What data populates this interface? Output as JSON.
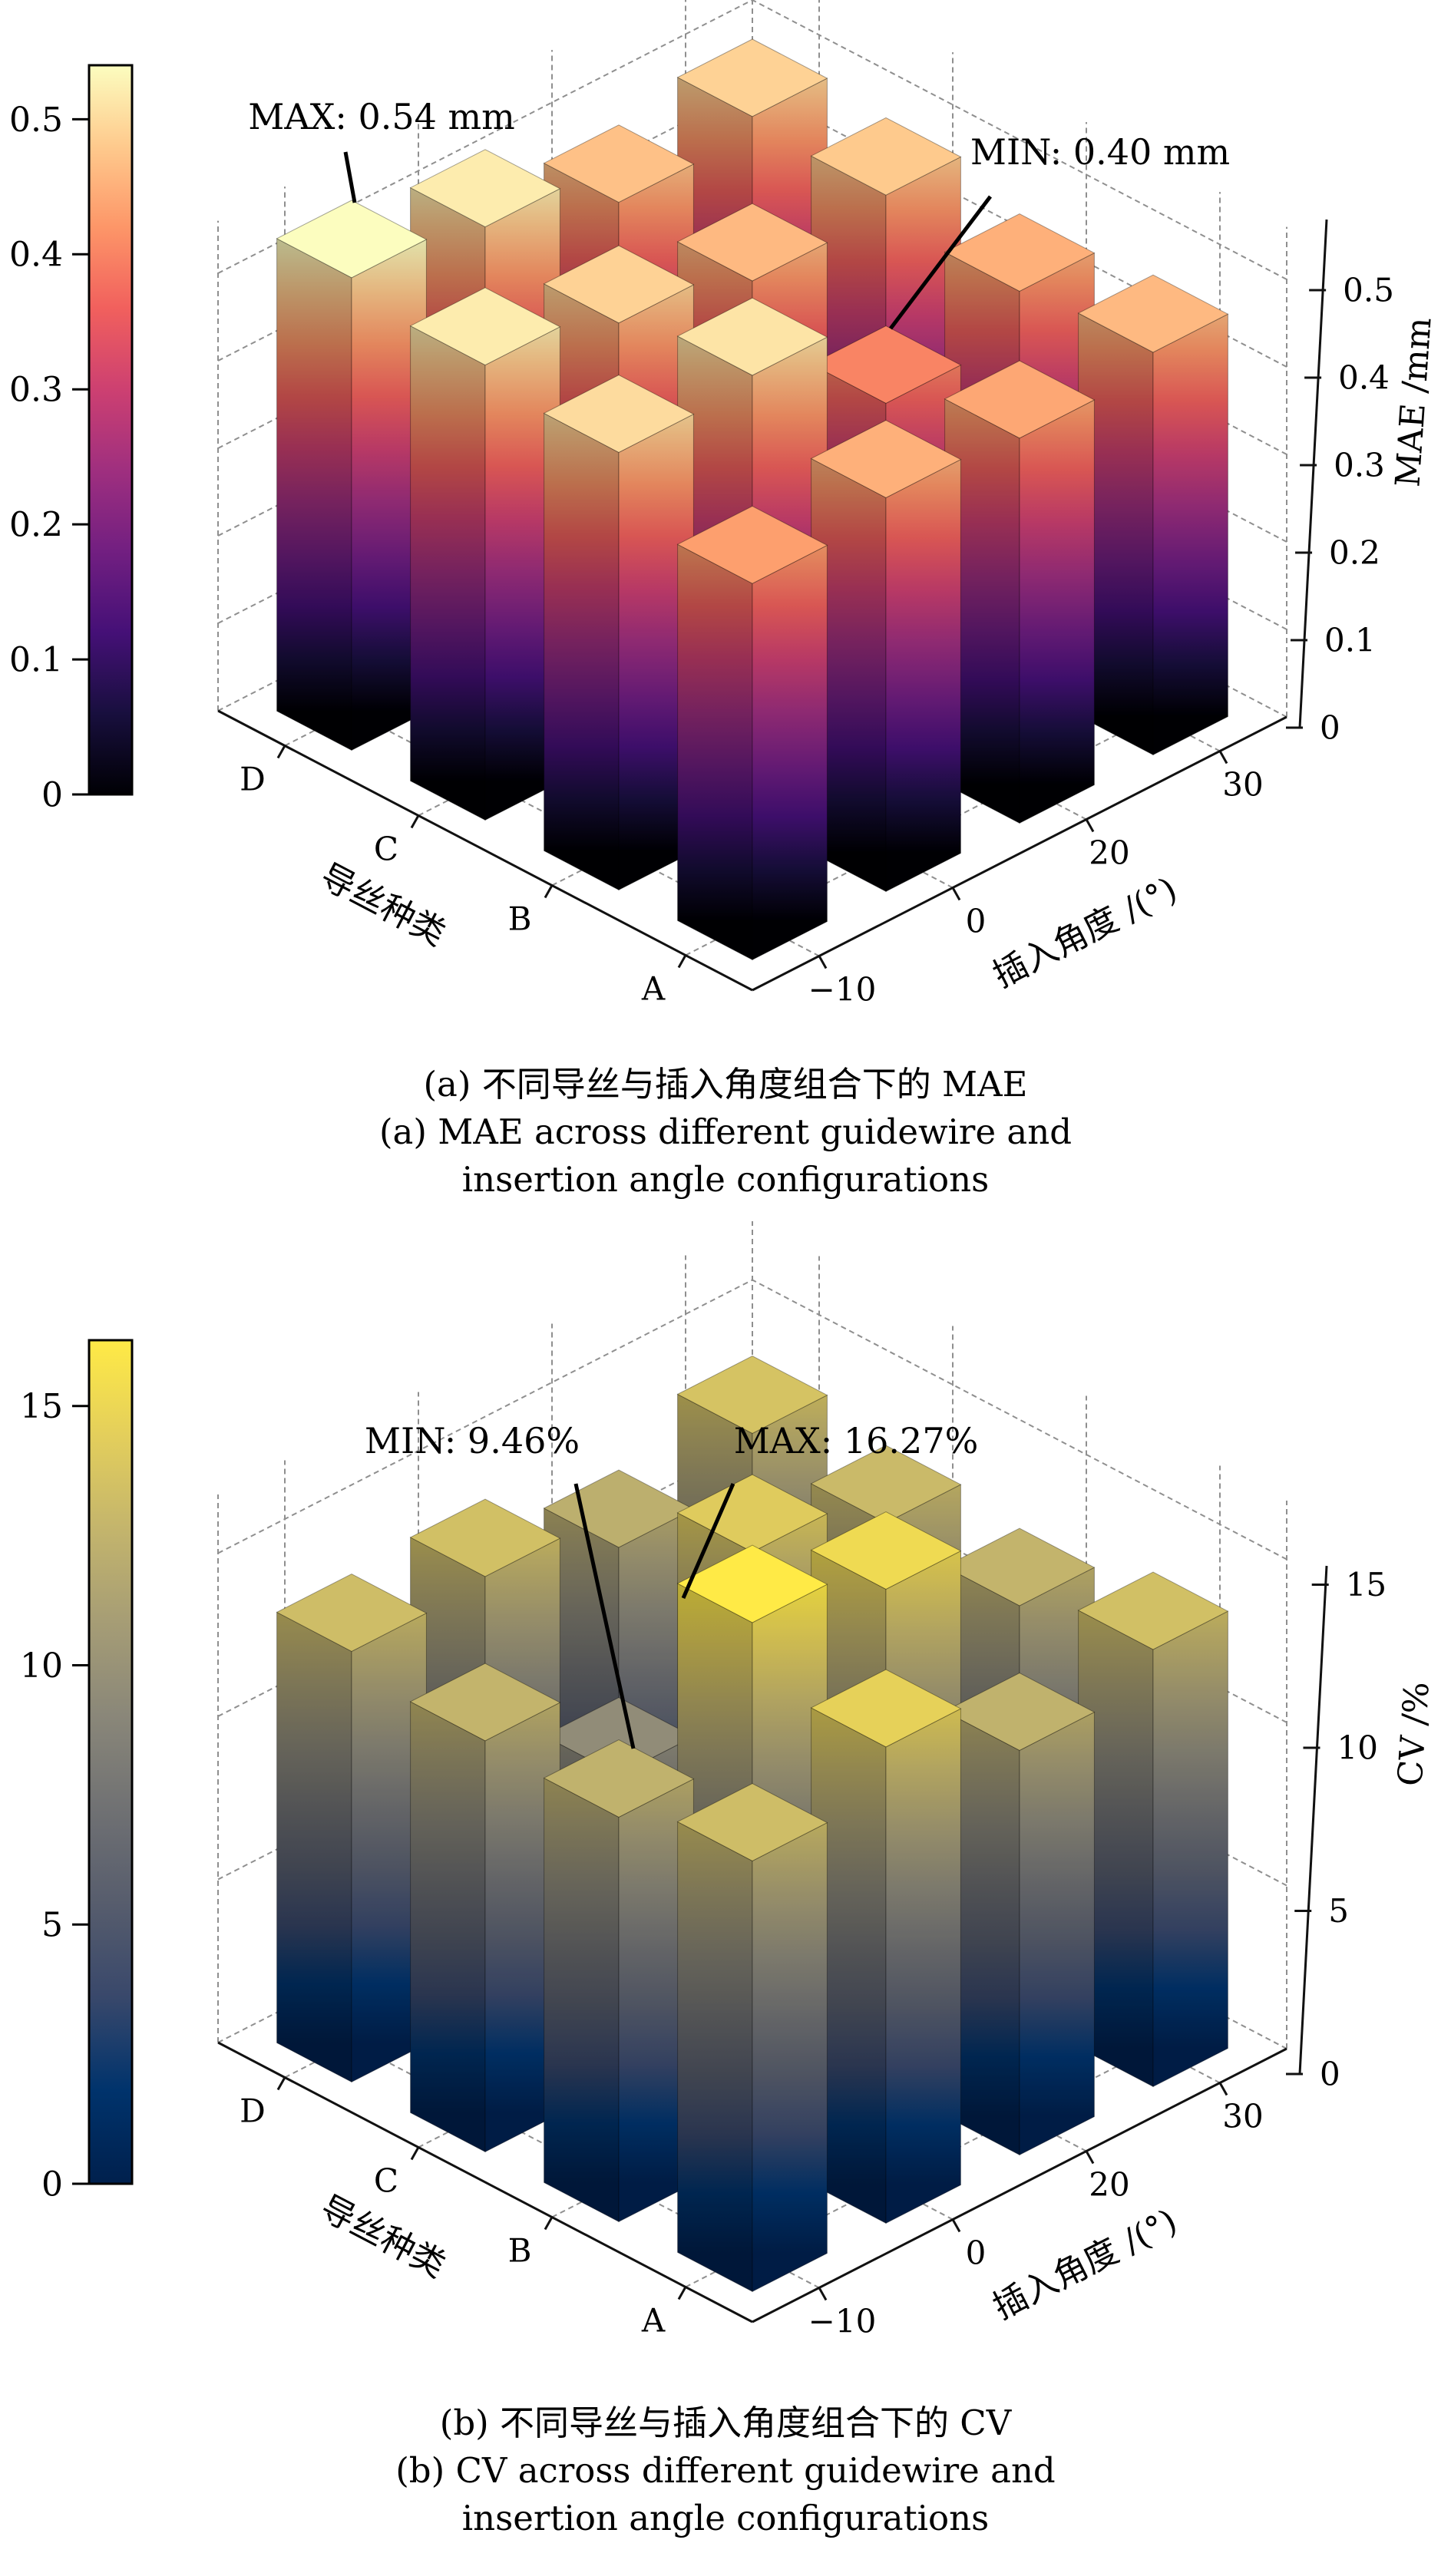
{
  "page": {
    "background": "#ffffff",
    "text_color": "#000000",
    "gridline_color": "#8a8a8a"
  },
  "chart_data": [
    {
      "type": "bar",
      "subtype": "bar3d",
      "panel": "a",
      "caption_lines": [
        "(a) 不同导丝与插入角度组合下的 MAE",
        "(a) MAE across different guidewire and",
        "insertion angle configurations"
      ],
      "xlabel": "插入角度 /(°)",
      "ylabel": "导丝种类",
      "zlabel": "MAE /mm",
      "x_categories": [
        "−10",
        "0",
        "20",
        "30"
      ],
      "y_categories": [
        "A",
        "B",
        "C",
        "D"
      ],
      "z_ticklabels": [
        "0",
        "0.1",
        "0.2",
        "0.3",
        "0.4",
        "0.5"
      ],
      "z_tick_values": [
        0,
        0.1,
        0.2,
        0.3,
        0.4,
        0.5
      ],
      "zlim": [
        0,
        0.56
      ],
      "grid": true,
      "colormap": "magma",
      "colormap_stops": [
        "#000004",
        "#180f3e",
        "#451077",
        "#721f81",
        "#9f2f7f",
        "#cd4071",
        "#f1605d",
        "#fd9668",
        "#feca8d",
        "#fcfdbf"
      ],
      "color_vmax": 0.54,
      "colorbar_ticklabels": [
        "0",
        "0.1",
        "0.2",
        "0.3",
        "0.4",
        "0.5"
      ],
      "colorbar_tick_values": [
        0,
        0.1,
        0.2,
        0.3,
        0.4,
        0.5
      ],
      "series": [
        {
          "name": "A",
          "values": [
            0.43,
            0.45,
            0.44,
            0.46
          ]
        },
        {
          "name": "B",
          "values": [
            0.5,
            0.51,
            0.4,
            0.45
          ]
        },
        {
          "name": "C",
          "values": [
            0.52,
            0.49,
            0.46,
            0.48
          ]
        },
        {
          "name": "D",
          "values": [
            0.54,
            0.52,
            0.47,
            0.49
          ]
        }
      ],
      "annotations": [
        {
          "text": "MAX: 0.54 mm",
          "target_wire": "D",
          "target_angle": "−10",
          "value": 0.54
        },
        {
          "text": "MIN: 0.40 mm",
          "target_wire": "B",
          "target_angle": "20",
          "value": 0.4
        }
      ]
    },
    {
      "type": "bar",
      "subtype": "bar3d",
      "panel": "b",
      "caption_lines": [
        "(b) 不同导丝与插入角度组合下的 CV",
        "(b) CV across different guidewire and",
        "insertion angle configurations"
      ],
      "xlabel": "插入角度 /(°)",
      "ylabel": "导丝种类",
      "zlabel": "CV /%",
      "x_categories": [
        "−10",
        "0",
        "20",
        "30"
      ],
      "y_categories": [
        "A",
        "B",
        "C",
        "D"
      ],
      "z_ticklabels": [
        "0",
        "5",
        "10",
        "15"
      ],
      "z_tick_values": [
        0,
        5,
        10,
        15
      ],
      "zlim": [
        0,
        16.8
      ],
      "grid": true,
      "colormap": "cividis",
      "colormap_stops": [
        "#00204d",
        "#00336c",
        "#39486b",
        "#575d6d",
        "#707173",
        "#8a8779",
        "#a69d75",
        "#c4b56c",
        "#e4cf5b",
        "#ffea46"
      ],
      "color_vmax": 16.27,
      "colorbar_ticklabels": [
        "0",
        "5",
        "10",
        "15"
      ],
      "colorbar_tick_values": [
        0,
        5,
        10,
        15
      ],
      "series": [
        {
          "name": "A",
          "values": [
            13.2,
            14.6,
            12.4,
            13.4
          ]
        },
        {
          "name": "B",
          "values": [
            12.4,
            16.27,
            15.2,
            12.6
          ]
        },
        {
          "name": "C",
          "values": [
            12.6,
            9.46,
            14.2,
            13.0
          ]
        },
        {
          "name": "D",
          "values": [
            13.2,
            13.4,
            12.2,
            13.6
          ]
        }
      ],
      "annotations": [
        {
          "text": "MIN: 9.46%",
          "target_wire": "C",
          "target_angle": "0",
          "value": 9.46
        },
        {
          "text": "MAX: 16.27%",
          "target_wire": "B",
          "target_angle": "0",
          "value": 16.27
        }
      ]
    }
  ]
}
